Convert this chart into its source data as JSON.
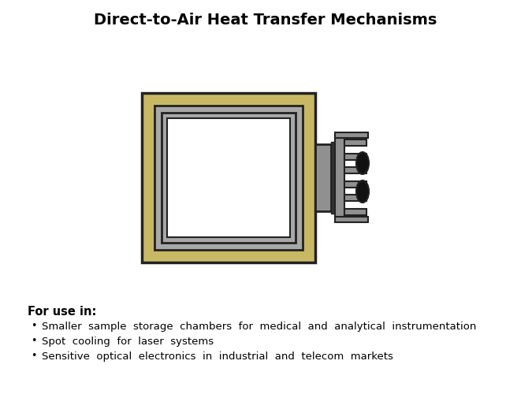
{
  "title": "Direct-to-Air Heat Transfer Mechanisms",
  "title_fontsize": 14,
  "title_fontweight": "bold",
  "background_color": "#ffffff",
  "bullet_header": "For use in:",
  "bullet_points": [
    "Smaller  sample  storage  chambers  for  medical  and  analytical  instrumentation",
    "Spot  cooling  for  laser  systems",
    "Sensitive  optical  electronics  in  industrial  and  telecom  markets"
  ],
  "colors": {
    "tan_outer": "#C8B864",
    "tan_outer_border": "#222222",
    "gray_frame": "#A8A8A8",
    "gray_frame_dark": "#888888",
    "gray_frame_border": "#222222",
    "white_inner": "#FFFFFF",
    "white_inner_border": "#222222",
    "heatsink_body": "#909090",
    "heatsink_border": "#222222",
    "fin_color": "#909090",
    "fin_border": "#222222",
    "ellipse_color": "#111111"
  }
}
